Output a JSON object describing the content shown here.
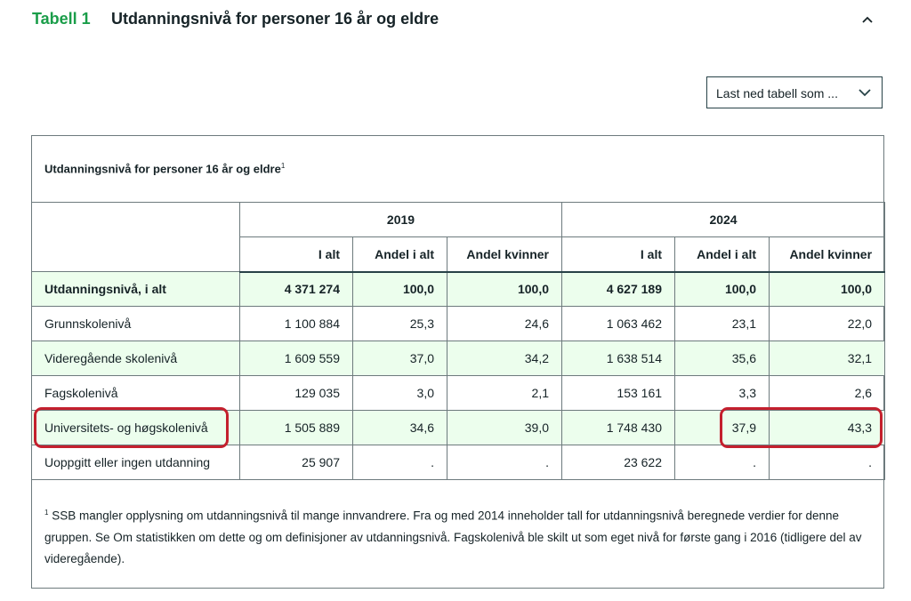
{
  "header": {
    "number": "Tabell 1",
    "title": "Utdanningsnivå for personer 16 år og eldre"
  },
  "download": {
    "label": "Last ned tabell som ..."
  },
  "table": {
    "caption": "Utdanningsnivå for personer 16 år og eldre",
    "caption_note": "1",
    "years": [
      "2019",
      "2024"
    ],
    "columns": [
      "I alt",
      "Andel i alt",
      "Andel kvinner",
      "I alt",
      "Andel i alt",
      "Andel kvinner"
    ],
    "rows": [
      {
        "label": "Utdanningsnivå, i alt",
        "values": [
          "4 371 274",
          "100,0",
          "100,0",
          "4 627 189",
          "100,0",
          "100,0"
        ]
      },
      {
        "label": "Grunnskolenivå",
        "values": [
          "1 100 884",
          "25,3",
          "24,6",
          "1 063 462",
          "23,1",
          "22,0"
        ]
      },
      {
        "label": "Videregående skolenivå",
        "values": [
          "1 609 559",
          "37,0",
          "34,2",
          "1 638 514",
          "35,6",
          "32,1"
        ]
      },
      {
        "label": "Fagskolenivå",
        "values": [
          "129 035",
          "3,0",
          "2,1",
          "153 161",
          "3,3",
          "2,6"
        ]
      },
      {
        "label": "Universitets- og høgskolenivå",
        "values": [
          "1 505 889",
          "34,6",
          "39,0",
          "1 748 430",
          "37,9",
          "43,3"
        ]
      },
      {
        "label": "Uoppgitt eller ingen utdanning",
        "values": [
          "25 907",
          ".",
          ".",
          "23 622",
          ".",
          "."
        ]
      }
    ],
    "footnote_mark": "1",
    "footnote": "SSB mangler opplysning om utdanningsnivå til mange innvandrere. Fra og med 2014 inneholder tall for utdanningsnivå beregnede verdier for denne gruppen. Se Om statistikken om dette og om definisjoner av utdanningsnivå. Fagskolenivå ble skilt ut som eget nivå for første gang i 2016 (tidligere del av videregående)."
  },
  "colors": {
    "accent_green": "#1a9d49",
    "row_highlight": "#ecfeed",
    "annotation_red": "#c4202e"
  }
}
